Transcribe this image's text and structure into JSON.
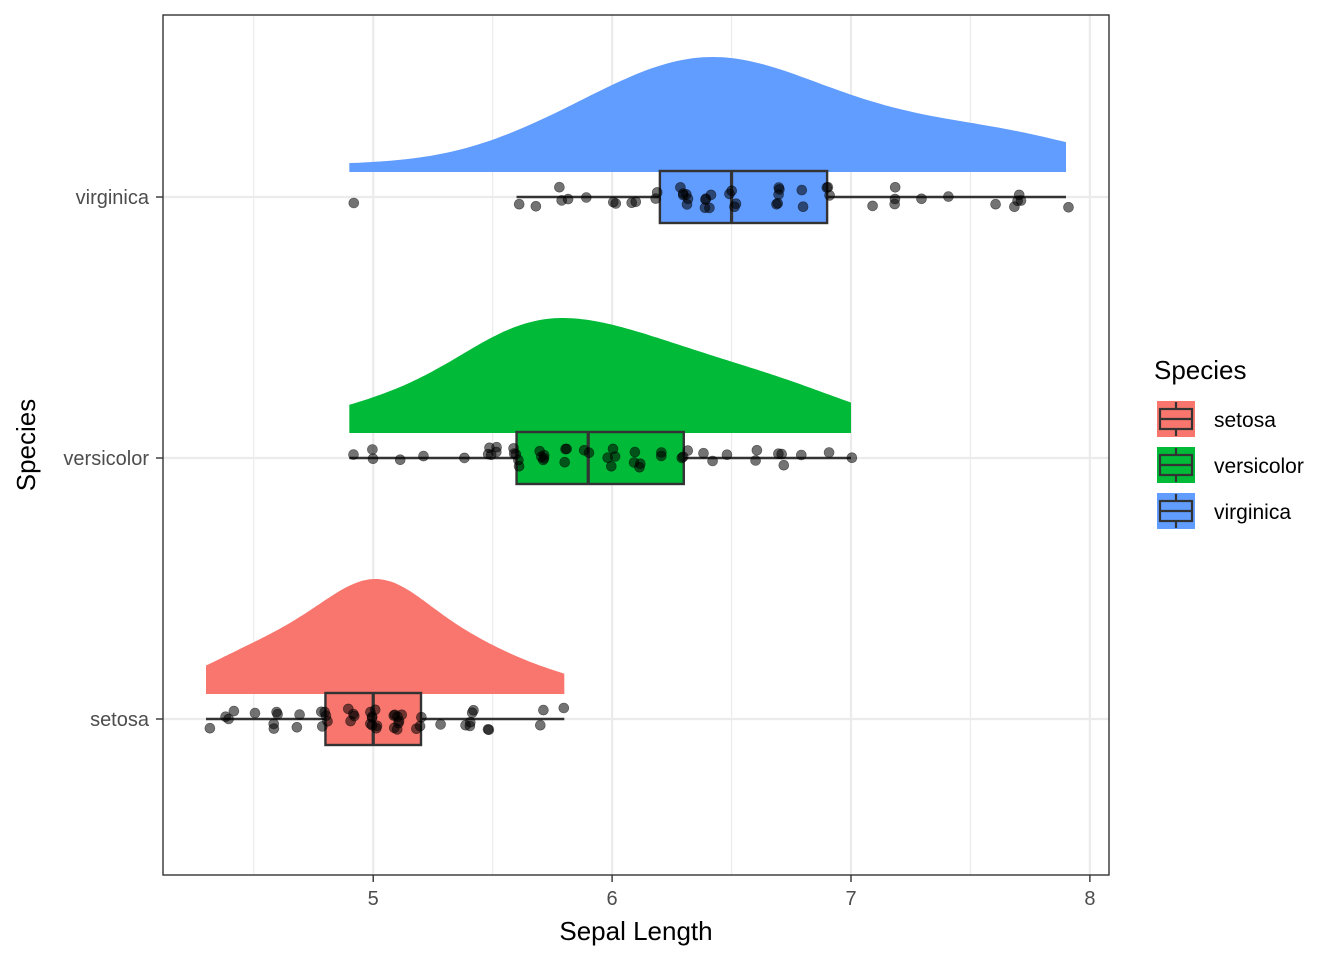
{
  "chart_data": {
    "type": "raincloud",
    "xlabel": "Sepal Length",
    "ylabel": "Species",
    "xlim": [
      4.12,
      8.08
    ],
    "x_ticks": [
      5,
      6,
      7,
      8
    ],
    "x_minor_ticks": [
      4.5,
      5.5,
      6.5,
      7.5
    ],
    "categories": [
      "setosa",
      "versicolor",
      "virginica"
    ],
    "grid": true,
    "legend": {
      "title": "Species",
      "position": "right",
      "entries": [
        "setosa",
        "versicolor",
        "virginica"
      ]
    },
    "colors": {
      "setosa": "#F8766D",
      "versicolor": "#00BA38",
      "virginica": "#619CFF"
    },
    "series": [
      {
        "name": "setosa",
        "box": {
          "whisker_low": 4.3,
          "q1": 4.8,
          "median": 5.0,
          "q3": 5.2,
          "whisker_high": 5.8
        },
        "density_range": [
          4.3,
          5.8
        ],
        "density_peak": 5.02,
        "points": [
          4.3,
          4.4,
          4.4,
          4.4,
          4.5,
          4.6,
          4.6,
          4.6,
          4.6,
          4.7,
          4.7,
          4.8,
          4.8,
          4.8,
          4.8,
          4.8,
          4.9,
          4.9,
          4.9,
          4.9,
          5.0,
          5.0,
          5.0,
          5.0,
          5.0,
          5.0,
          5.0,
          5.0,
          5.1,
          5.1,
          5.1,
          5.1,
          5.1,
          5.1,
          5.1,
          5.1,
          5.2,
          5.2,
          5.2,
          5.3,
          5.4,
          5.4,
          5.4,
          5.4,
          5.4,
          5.5,
          5.5,
          5.7,
          5.7,
          5.8
        ]
      },
      {
        "name": "versicolor",
        "box": {
          "whisker_low": 4.9,
          "q1": 5.6,
          "median": 5.9,
          "q3": 6.3,
          "whisker_high": 7.0
        },
        "density_range": [
          4.9,
          7.0
        ],
        "density_peak": 5.75,
        "points": [
          4.9,
          5.0,
          5.0,
          5.1,
          5.2,
          5.4,
          5.5,
          5.5,
          5.5,
          5.5,
          5.5,
          5.6,
          5.6,
          5.6,
          5.6,
          5.6,
          5.7,
          5.7,
          5.7,
          5.7,
          5.7,
          5.8,
          5.8,
          5.8,
          5.9,
          5.9,
          6.0,
          6.0,
          6.0,
          6.0,
          6.1,
          6.1,
          6.1,
          6.1,
          6.2,
          6.2,
          6.3,
          6.3,
          6.3,
          6.4,
          6.4,
          6.5,
          6.6,
          6.6,
          6.7,
          6.7,
          6.7,
          6.8,
          6.9,
          7.0
        ]
      },
      {
        "name": "virginica",
        "box": {
          "whisker_low": 5.6,
          "q1": 6.2,
          "median": 6.5,
          "q3": 6.9,
          "whisker_high": 7.9
        },
        "density_range": [
          4.9,
          7.9
        ],
        "density_peak": 6.4,
        "points": [
          4.9,
          5.6,
          5.7,
          5.8,
          5.8,
          5.8,
          5.9,
          6.0,
          6.0,
          6.1,
          6.1,
          6.2,
          6.2,
          6.3,
          6.3,
          6.3,
          6.3,
          6.3,
          6.3,
          6.4,
          6.4,
          6.4,
          6.4,
          6.4,
          6.5,
          6.5,
          6.5,
          6.5,
          6.7,
          6.7,
          6.7,
          6.7,
          6.7,
          6.8,
          6.8,
          6.9,
          6.9,
          6.9,
          7.1,
          7.2,
          7.2,
          7.2,
          7.3,
          7.4,
          7.6,
          7.7,
          7.7,
          7.7,
          7.7,
          7.9
        ]
      }
    ]
  }
}
